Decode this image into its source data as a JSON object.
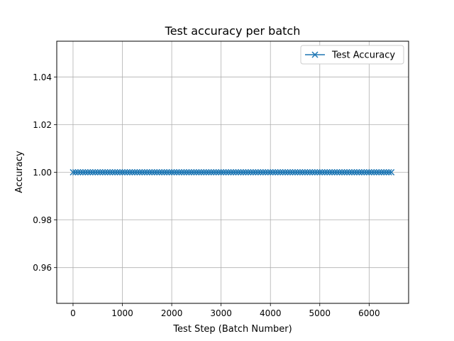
{
  "chart_data": {
    "type": "line",
    "title": "Test accuracy per batch",
    "xlabel": "Test Step (Batch Number)",
    "ylabel": "Accuracy",
    "xlim": [
      -330,
      6800
    ],
    "ylim": [
      0.945,
      1.055
    ],
    "xticks": [
      0,
      1000,
      2000,
      3000,
      4000,
      5000,
      6000
    ],
    "yticks": [
      0.96,
      0.98,
      1.0,
      1.02,
      1.04
    ],
    "xtick_labels": [
      "0",
      "1000",
      "2000",
      "3000",
      "4000",
      "5000",
      "6000"
    ],
    "ytick_labels": [
      "0.96",
      "0.98",
      "1.00",
      "1.02",
      "1.04"
    ],
    "grid": true,
    "legend_position": "top-right",
    "series": [
      {
        "name": "Test Accuracy",
        "color": "#1f77b4",
        "marker": "x",
        "x_start": 0,
        "x_end": 6470,
        "x_step": 50,
        "y": 1.0
      }
    ]
  }
}
